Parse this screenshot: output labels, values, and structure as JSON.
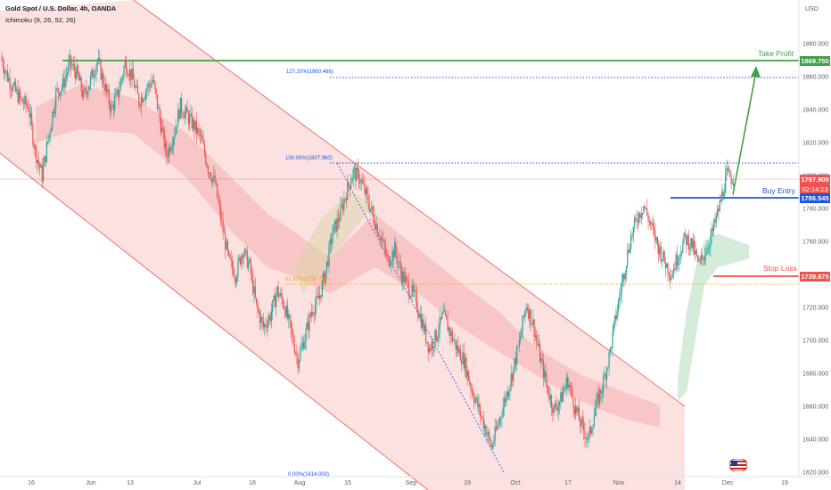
{
  "header": {
    "title": "Gold Spot / U.S. Dollar, 4h, OANDA",
    "indicator": "Ichimoku (9, 26, 52, 26)"
  },
  "chart_data": {
    "type": "candlestick",
    "currency_label": "USD",
    "y_ticks": [
      1620,
      1640,
      1660,
      1680,
      1700,
      1720,
      1740,
      1760,
      1780,
      1800,
      1820,
      1840,
      1860,
      1880
    ],
    "x_ticks": [
      "16",
      "Jun",
      "13",
      "Jul",
      "18",
      "Aug",
      "15",
      "Sep",
      "19",
      "Oct",
      "17",
      "Nov",
      "14",
      "Dec",
      "19"
    ],
    "levels": {
      "take_profit": {
        "label": "Take Profit",
        "value": "1869.750",
        "color": "#43a047"
      },
      "fib_127": {
        "label": "127.20%(1860.466)",
        "value": 1860.466
      },
      "fib_100": {
        "label": "100.00%(1807.960)",
        "value": 1807.96
      },
      "last_price": {
        "value": "1797.905",
        "countdown": "02:14:23",
        "color": "#ef5350"
      },
      "buy_entry": {
        "label": "Buy Entry",
        "value": "1786.545",
        "color": "#1e53e5"
      },
      "stop_loss": {
        "label": "Stop Loss",
        "value": "1739.675",
        "color": "#ef5350"
      },
      "fib_low": {
        "label": "61.80%(1736.782)",
        "value": 1736.782
      },
      "fib_zero": {
        "label": "0.00%(1614.000)",
        "value": 1614.0
      }
    },
    "price_path": [
      1872,
      1860,
      1852,
      1845,
      1842,
      1815,
      1800,
      1825,
      1850,
      1855,
      1868,
      1862,
      1848,
      1858,
      1870,
      1855,
      1840,
      1850,
      1868,
      1860,
      1845,
      1852,
      1858,
      1835,
      1812,
      1825,
      1842,
      1836,
      1830,
      1822,
      1805,
      1795,
      1770,
      1748,
      1740,
      1755,
      1745,
      1720,
      1708,
      1715,
      1730,
      1722,
      1705,
      1688,
      1702,
      1718,
      1725,
      1742,
      1765,
      1775,
      1790,
      1802,
      1798,
      1786,
      1774,
      1762,
      1748,
      1755,
      1740,
      1732,
      1725,
      1710,
      1695,
      1703,
      1715,
      1705,
      1695,
      1688,
      1672,
      1660,
      1648,
      1635,
      1650,
      1665,
      1680,
      1698,
      1722,
      1710,
      1690,
      1672,
      1658,
      1664,
      1676,
      1660,
      1648,
      1640,
      1658,
      1672,
      1690,
      1715,
      1738,
      1760,
      1774,
      1782,
      1770,
      1758,
      1748,
      1740,
      1752,
      1762,
      1758,
      1745,
      1755,
      1766,
      1782,
      1800,
      1797.9
    ]
  },
  "flag": {
    "icon": "us-flag-icon"
  }
}
